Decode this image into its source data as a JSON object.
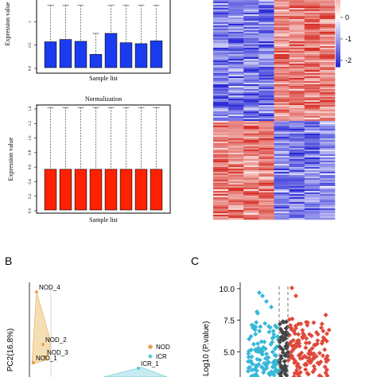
{
  "chart_data": [
    {
      "id": "raw",
      "type": "bar",
      "title": "",
      "xlabel": "Sample list",
      "ylabel": "Expression value",
      "ylim": [
        0,
        1.5
      ],
      "yticks": [
        "0.0",
        "0.5",
        "1"
      ],
      "bar_color": "#1a3cf0",
      "values": [
        0.57,
        0.62,
        0.58,
        0.3,
        0.75,
        0.55,
        0.53,
        0.59
      ],
      "whisker_low": [
        0.08,
        0.08,
        0.08,
        0.02,
        0.08,
        0.08,
        0.08,
        0.08
      ],
      "whisker_high": [
        1.35,
        1.35,
        1.35,
        0.75,
        1.35,
        1.35,
        1.35,
        1.35
      ]
    },
    {
      "id": "normalization",
      "type": "bar",
      "title": "Normalization",
      "xlabel": "Sample list",
      "ylabel": "Expression value",
      "ylim": [
        0,
        1.4
      ],
      "yticks": [
        "0.0",
        "0.2",
        "0.4",
        "0.6",
        "0.8",
        "1.0",
        "1.2",
        "1.4"
      ],
      "bar_color": "#ff2200",
      "values": [
        0.57,
        0.57,
        0.57,
        0.57,
        0.57,
        0.57,
        0.57,
        0.57
      ],
      "whisker_low": [
        0.02,
        0.02,
        0.02,
        0.02,
        0.02,
        0.02,
        0.02,
        0.02
      ],
      "whisker_high": [
        1.42,
        1.42,
        1.42,
        1.42,
        1.42,
        1.42,
        1.42,
        1.42
      ]
    },
    {
      "id": "heatmap",
      "type": "heatmap",
      "columns": 8,
      "color_high": "#d73027",
      "color_mid": "#ffffff",
      "color_low": "#2b2bd6",
      "legend_ticks": [
        "0",
        "-1",
        "-2"
      ],
      "legend_range": [
        -2.3,
        2.3
      ]
    },
    {
      "id": "pca",
      "type": "scatter",
      "panel_label": "B",
      "ylabel": "PC2(16.8%)",
      "groups": [
        {
          "name": "NOD",
          "color": "#e8a24a",
          "fill": "#f5d9a8"
        },
        {
          "name": "ICR",
          "color": "#5cc8d8",
          "fill": "#bfe8f0"
        }
      ],
      "points": [
        {
          "label": "NOD_4",
          "group": "NOD"
        },
        {
          "label": "NOD_2",
          "group": "NOD"
        },
        {
          "label": "NOD_3",
          "group": "NOD"
        },
        {
          "label": "NOD_1",
          "group": "NOD"
        },
        {
          "label": "ICR_1",
          "group": "ICR"
        }
      ]
    },
    {
      "id": "volcano",
      "type": "scatter",
      "panel_label": "C",
      "ylabel": "-Log10 (P.value)",
      "ylim": [
        3,
        10.5
      ],
      "yticks": [
        "10.0",
        "7.5",
        "5.0"
      ],
      "colors": {
        "down": "#36b8d8",
        "ns": "#444444",
        "up": "#e0483a"
      }
    }
  ]
}
